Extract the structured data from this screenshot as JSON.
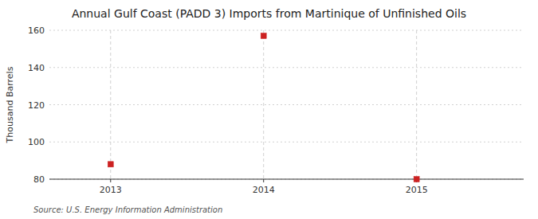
{
  "chart_data": {
    "type": "scatter",
    "title": "Annual Gulf Coast (PADD 3) Imports from Martinique of Unfinished Oils",
    "y_label": "Thousand Barrels",
    "source": "Source: U.S. Energy Information Administration",
    "x": [
      2013,
      2014,
      2015
    ],
    "values": [
      88,
      157,
      80
    ],
    "color": "#cc2222",
    "marker": "square",
    "xlim": [
      2012.6,
      2015.7
    ],
    "xticks": [
      2013,
      2014,
      2015
    ],
    "ylim": [
      80,
      160
    ],
    "yticks": [
      80,
      100,
      120,
      140,
      160
    ],
    "grid": true
  }
}
